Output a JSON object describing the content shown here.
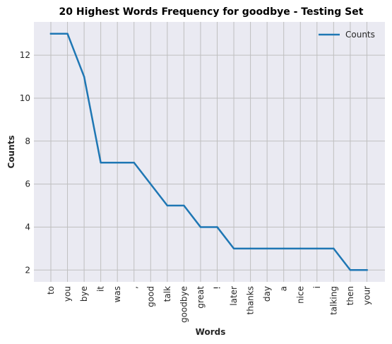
{
  "chart_data": {
    "type": "line",
    "title": "20 Highest Words Frequency for goodbye - Testing Set",
    "xlabel": "Words",
    "ylabel": "Counts",
    "categories": [
      "to",
      "you",
      "bye",
      "it",
      "was",
      ",",
      "good",
      "talk",
      "goodbye",
      "great",
      "!",
      "later",
      "thanks",
      "day",
      "a",
      "nice",
      "i",
      "talking",
      "then",
      "your"
    ],
    "series": [
      {
        "name": "Counts",
        "values": [
          13,
          13,
          11,
          7,
          7,
          7,
          6,
          5,
          5,
          4,
          4,
          3,
          3,
          3,
          3,
          3,
          3,
          3,
          2,
          2
        ]
      }
    ],
    "yticks": [
      "2",
      "4",
      "6",
      "8",
      "10",
      "12"
    ],
    "ylim": [
      1.45,
      13.55
    ],
    "grid": true,
    "legend_position": "top-right",
    "colors": {
      "line": "#1f77b4",
      "plot_bg": "#eaeaf2",
      "grid": "#bfbfbf"
    }
  }
}
